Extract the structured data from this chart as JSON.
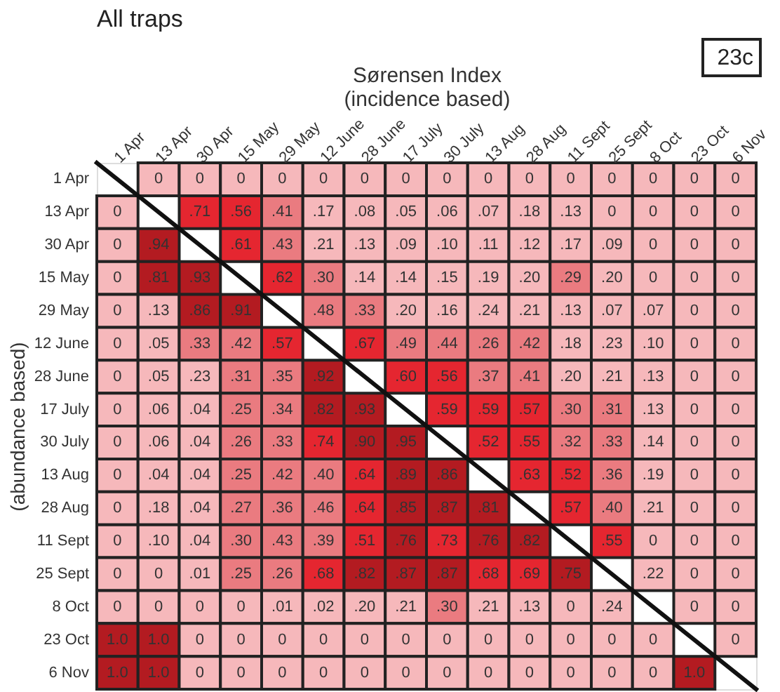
{
  "chart_data": {
    "type": "heatmap",
    "title": "All traps",
    "xlabel": "Sørensen Index\n(incidence  based)",
    "ylabel": "(abundance based)",
    "annotations": [
      "23c"
    ],
    "categories": [
      "1 Apr",
      "13 Apr",
      "30 Apr",
      "15 May",
      "29 May",
      "12 June",
      "28 June",
      "17 July",
      "30 July",
      "13 Aug",
      "28 Aug",
      "11 Sept",
      "25 Sept",
      "8 Oct",
      "23 Oct",
      "6 Nov"
    ],
    "y_categories": [
      "1 Apr",
      "13 Apr",
      "30 Apr",
      "15 May",
      "29 May",
      "12 June",
      "28 June",
      "17 July",
      "30 July",
      "13 Aug",
      "28 Aug",
      "11 Sept",
      "25 Sept",
      "8 Oct",
      "23 Oct",
      "6 Nov"
    ],
    "cells": [
      [
        null,
        0,
        0,
        0,
        0,
        0,
        0,
        0,
        0,
        0,
        0,
        0,
        0,
        0,
        0,
        0
      ],
      [
        0,
        null,
        0.71,
        0.56,
        0.41,
        0.17,
        0.08,
        0.05,
        0.06,
        0.07,
        0.18,
        0.13,
        0,
        0,
        0,
        0
      ],
      [
        0,
        0.94,
        null,
        0.61,
        0.43,
        0.21,
        0.13,
        0.09,
        0.1,
        0.11,
        0.12,
        0.17,
        0.09,
        0,
        0,
        0
      ],
      [
        0,
        0.81,
        0.93,
        null,
        0.62,
        0.3,
        0.14,
        0.14,
        0.15,
        0.19,
        0.2,
        0.29,
        0.2,
        0,
        0,
        0
      ],
      [
        0,
        0.13,
        0.86,
        0.91,
        null,
        0.48,
        0.33,
        0.2,
        0.16,
        0.24,
        0.21,
        0.13,
        0.07,
        0.07,
        0,
        0
      ],
      [
        0,
        0.05,
        0.33,
        0.42,
        0.57,
        null,
        0.67,
        0.49,
        0.44,
        0.26,
        0.42,
        0.18,
        0.23,
        0.1,
        0,
        0
      ],
      [
        0,
        0.05,
        0.23,
        0.31,
        0.35,
        0.92,
        null,
        0.6,
        0.56,
        0.37,
        0.41,
        0.2,
        0.21,
        0.13,
        0,
        0
      ],
      [
        0,
        0.06,
        0.04,
        0.25,
        0.34,
        0.82,
        0.93,
        null,
        0.59,
        0.59,
        0.57,
        0.3,
        0.31,
        0.13,
        0,
        0
      ],
      [
        0,
        0.06,
        0.04,
        0.26,
        0.33,
        0.74,
        0.9,
        0.95,
        null,
        0.52,
        0.55,
        0.32,
        0.33,
        0.14,
        0,
        0
      ],
      [
        0,
        0.04,
        0.04,
        0.25,
        0.42,
        0.4,
        0.64,
        0.89,
        0.86,
        null,
        0.63,
        0.52,
        0.36,
        0.19,
        0,
        0
      ],
      [
        0,
        0.18,
        0.04,
        0.27,
        0.36,
        0.46,
        0.64,
        0.85,
        0.87,
        0.81,
        null,
        0.57,
        0.4,
        0.21,
        0,
        0
      ],
      [
        0,
        0.1,
        0.04,
        0.3,
        0.43,
        0.39,
        0.51,
        0.76,
        0.73,
        0.76,
        0.82,
        null,
        0.55,
        0,
        0,
        0
      ],
      [
        0,
        0,
        0.01,
        0.25,
        0.26,
        0.68,
        0.82,
        0.87,
        0.87,
        0.68,
        0.69,
        0.75,
        null,
        0.22,
        0,
        0
      ],
      [
        0,
        0,
        0,
        0,
        0.01,
        0.02,
        0.2,
        0.21,
        0.3,
        0.21,
        0.13,
        0,
        0.24,
        null,
        0,
        0
      ],
      [
        1.0,
        1.0,
        0,
        0,
        0,
        0,
        0,
        0,
        0,
        0,
        0,
        0,
        0,
        0,
        null,
        0
      ],
      [
        1.0,
        1.0,
        0,
        0,
        0,
        0,
        0,
        0,
        0,
        0,
        0,
        0,
        0,
        0,
        1.0,
        null
      ]
    ],
    "cell_labels": [
      [
        null,
        "0",
        "0",
        "0",
        "0",
        "0",
        "0",
        "0",
        "0",
        "0",
        "0",
        "0",
        "0",
        "0",
        "0",
        "0"
      ],
      [
        "0",
        null,
        ".71",
        ".56",
        ".41",
        ".17",
        ".08",
        ".05",
        ".06",
        ".07",
        ".18",
        ".13",
        "0",
        "0",
        "0",
        "0"
      ],
      [
        "0",
        ".94",
        null,
        ".61",
        ".43",
        ".21",
        ".13",
        ".09",
        ".10",
        ".11",
        ".12",
        ".17",
        ".09",
        "0",
        "0",
        "0"
      ],
      [
        "0",
        ".81",
        ".93",
        null,
        ".62",
        ".30",
        ".14",
        ".14",
        ".15",
        ".19",
        ".20",
        ".29",
        ".20",
        "0",
        "0",
        "0"
      ],
      [
        "0",
        ".13",
        ".86",
        ".91",
        null,
        ".48",
        ".33",
        ".20",
        ".16",
        ".24",
        ".21",
        ".13",
        ".07",
        ".07",
        "0",
        "0"
      ],
      [
        "0",
        ".05",
        ".33",
        ".42",
        ".57",
        null,
        ".67",
        ".49",
        ".44",
        ".26",
        ".42",
        ".18",
        ".23",
        ".10",
        "0",
        "0"
      ],
      [
        "0",
        ".05",
        ".23",
        ".31",
        ".35",
        ".92",
        null,
        ".60",
        ".56",
        ".37",
        ".41",
        ".20",
        ".21",
        ".13",
        "0",
        "0"
      ],
      [
        "0",
        ".06",
        ".04",
        ".25",
        ".34",
        ".82",
        ".93",
        null,
        ".59",
        ".59",
        ".57",
        ".30",
        ".31",
        ".13",
        "0",
        "0"
      ],
      [
        "0",
        ".06",
        ".04",
        ".26",
        ".33",
        ".74",
        ".90",
        ".95",
        null,
        ".52",
        ".55",
        ".32",
        ".33",
        ".14",
        "0",
        "0"
      ],
      [
        "0",
        ".04",
        ".04",
        ".25",
        ".42",
        ".40",
        ".64",
        ".89",
        ".86",
        null,
        ".63",
        ".52",
        ".36",
        ".19",
        "0",
        "0"
      ],
      [
        "0",
        ".18",
        ".04",
        ".27",
        ".36",
        ".46",
        ".64",
        ".85",
        ".87",
        ".81",
        null,
        ".57",
        ".40",
        ".21",
        "0",
        "0"
      ],
      [
        "0",
        ".10",
        ".04",
        ".30",
        ".43",
        ".39",
        ".51",
        ".76",
        ".73",
        ".76",
        ".82",
        null,
        ".55",
        "0",
        "0",
        "0"
      ],
      [
        "0",
        "0",
        ".01",
        ".25",
        ".26",
        ".68",
        ".82",
        ".87",
        ".87",
        ".68",
        ".69",
        ".75",
        null,
        ".22",
        "0",
        "0"
      ],
      [
        "0",
        "0",
        "0",
        "0",
        ".01",
        ".02",
        ".20",
        ".21",
        ".30",
        ".21",
        ".13",
        "0",
        ".24",
        null,
        "0",
        "0"
      ],
      [
        "1.0",
        "1.0",
        "0",
        "0",
        "0",
        "0",
        "0",
        "0",
        "0",
        "0",
        "0",
        "0",
        "0",
        "0",
        null,
        "0"
      ],
      [
        "1.0",
        "1.0",
        "0",
        "0",
        "0",
        "0",
        "0",
        "0",
        "0",
        "0",
        "0",
        "0",
        "0",
        "0",
        "1.0",
        null
      ]
    ]
  }
}
